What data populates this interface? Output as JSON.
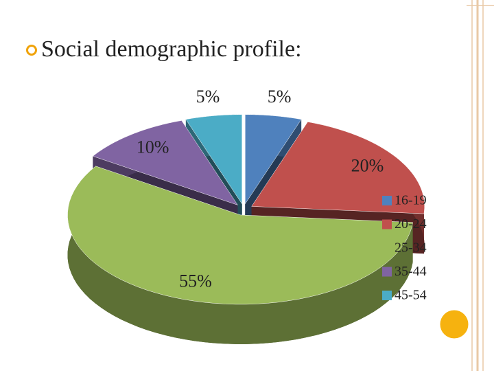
{
  "chart_data": {
    "type": "pie",
    "title": "Social demographic profile:",
    "categories": [
      "16-19",
      "20-24",
      "25-34",
      "35-44",
      "45-54"
    ],
    "values": [
      5,
      20,
      55,
      10,
      5
    ],
    "value_labels": [
      "5%",
      "20%",
      "55%",
      "10%",
      "5%"
    ],
    "colors": [
      "#4f81bd",
      "#c0504d",
      "#9bbb59",
      "#8064a2",
      "#4bacc6"
    ],
    "legend": "right"
  }
}
